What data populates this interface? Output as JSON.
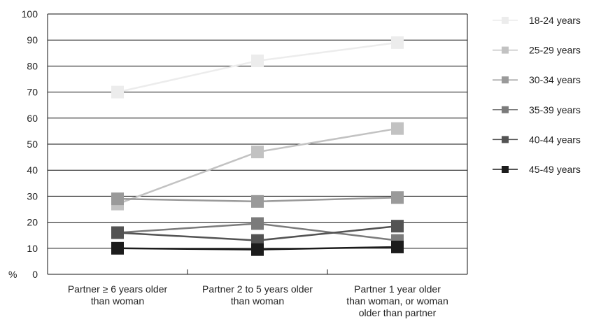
{
  "chart_data": {
    "type": "line",
    "ylabel": "%",
    "ylim": [
      0,
      100
    ],
    "yticks": [
      0,
      10,
      20,
      30,
      40,
      50,
      60,
      70,
      80,
      90,
      100
    ],
    "grid": "horizontal",
    "legend_position": "right",
    "categories": [
      [
        "Partner ≥ 6 years older",
        "than woman"
      ],
      [
        "Partner 2 to 5 years older",
        "than woman"
      ],
      [
        "Partner 1 year older",
        "than woman, or woman",
        "older than partner"
      ]
    ],
    "series": [
      {
        "name": "18-24 years",
        "color": "#ececec",
        "values": [
          70,
          82,
          89
        ]
      },
      {
        "name": "25-29 years",
        "color": "#c2c2c2",
        "values": [
          27,
          47,
          56
        ]
      },
      {
        "name": "30-34 years",
        "color": "#9a9a9a",
        "values": [
          29,
          28,
          29.5
        ]
      },
      {
        "name": "35-39 years",
        "color": "#7b7b7b",
        "values": [
          16,
          19.5,
          13
        ]
      },
      {
        "name": "40-44 years",
        "color": "#535353",
        "values": [
          16,
          13,
          18.5
        ]
      },
      {
        "name": "45-49 years",
        "color": "#1c1c1c",
        "values": [
          10,
          9.5,
          10.5
        ]
      }
    ]
  }
}
